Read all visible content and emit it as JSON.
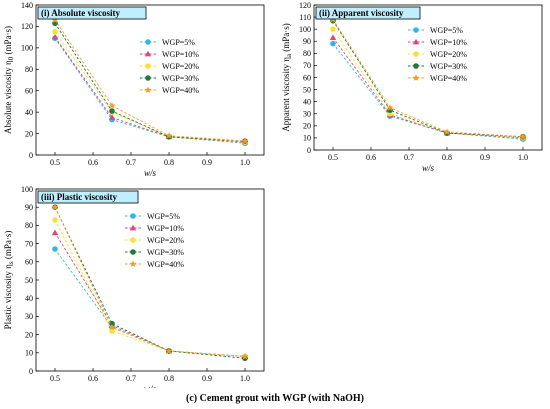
{
  "caption": "(c) Cement grout with WGP (with NaOH)",
  "colors": {
    "WGP=5%": "#33b5e5",
    "WGP=10%": "#e0457b",
    "WGP=20%": "#f2e33a",
    "WGP=30%": "#1e7a34",
    "WGP=40%": "#f59a2e",
    "tag_bg": "#bfefff"
  },
  "chart_data": [
    {
      "type": "line",
      "panel_tag": "(i) Absolute viscosity",
      "xlabel": "w/s",
      "ylabel": "Absolute viscosity η",
      "ylabel_sub": "0",
      "ylabel_unit": " (mPa·s)",
      "xlim": [
        0.45,
        1.05
      ],
      "ylim": [
        0,
        140
      ],
      "xticks": [
        "0.5",
        "0.6",
        "0.7",
        "0.8",
        "0.9",
        "1.0"
      ],
      "yticks": [
        "0",
        "20",
        "40",
        "60",
        "80",
        "100",
        "120",
        "140"
      ],
      "x": [
        0.5,
        0.65,
        0.8,
        1.0
      ],
      "series": [
        {
          "name": "WGP=5%",
          "marker": "circle",
          "values": [
            109,
            33,
            17,
            11
          ]
        },
        {
          "name": "WGP=10%",
          "marker": "triangle",
          "values": [
            110,
            35,
            17,
            12
          ]
        },
        {
          "name": "WGP=20%",
          "marker": "circle",
          "values": [
            115,
            40,
            17,
            12
          ]
        },
        {
          "name": "WGP=30%",
          "marker": "circle",
          "values": [
            123,
            41,
            17,
            13
          ]
        },
        {
          "name": "WGP=40%",
          "marker": "star",
          "values": [
            126,
            46,
            18,
            13
          ]
        }
      ]
    },
    {
      "type": "line",
      "panel_tag": "(ii) Apparent viscosity",
      "xlabel": "w/s",
      "ylabel": "Apparent viscosity η",
      "ylabel_sub": "a",
      "ylabel_unit": " (mPa·s)",
      "xlim": [
        0.45,
        1.05
      ],
      "ylim": [
        0,
        120
      ],
      "xticks": [
        "0.5",
        "0.6",
        "0.7",
        "0.8",
        "0.9",
        "1.0"
      ],
      "yticks": [
        "0",
        "10",
        "20",
        "30",
        "40",
        "50",
        "60",
        "70",
        "80",
        "90",
        "100",
        "110",
        "120"
      ],
      "x": [
        0.5,
        0.65,
        0.8,
        1.0
      ],
      "series": [
        {
          "name": "WGP=5%",
          "marker": "circle",
          "values": [
            88,
            28,
            14,
            9
          ]
        },
        {
          "name": "WGP=10%",
          "marker": "triangle",
          "values": [
            93,
            29,
            14,
            10
          ]
        },
        {
          "name": "WGP=20%",
          "marker": "circle",
          "values": [
            100,
            30,
            14,
            10
          ]
        },
        {
          "name": "WGP=30%",
          "marker": "circle",
          "values": [
            107,
            33,
            14,
            11
          ]
        },
        {
          "name": "WGP=40%",
          "marker": "star",
          "values": [
            108,
            35,
            15,
            11
          ]
        }
      ]
    },
    {
      "type": "line",
      "panel_tag": "(iii) Plastic viscosity",
      "xlabel": "w/s",
      "ylabel": "Plastic viscosity η",
      "ylabel_sub": "s",
      "ylabel_unit": " (mPa·s)",
      "xlim": [
        0.45,
        1.05
      ],
      "ylim": [
        0,
        100
      ],
      "xticks": [
        "0.5",
        "0.6",
        "0.7",
        "0.8",
        "0.9",
        "1.0"
      ],
      "yticks": [
        "0",
        "10",
        "20",
        "30",
        "40",
        "50",
        "60",
        "70",
        "80",
        "90",
        "100"
      ],
      "x": [
        0.5,
        0.65,
        0.8,
        1.0
      ],
      "series": [
        {
          "name": "WGP=5%",
          "marker": "circle",
          "values": [
            67,
            24,
            11,
            8
          ]
        },
        {
          "name": "WGP=10%",
          "marker": "triangle",
          "values": [
            76,
            25,
            11,
            8
          ]
        },
        {
          "name": "WGP=20%",
          "marker": "circle",
          "values": [
            83,
            22,
            11,
            8
          ]
        },
        {
          "name": "WGP=30%",
          "marker": "circle",
          "values": [
            90,
            26,
            11,
            7
          ]
        },
        {
          "name": "WGP=40%",
          "marker": "star",
          "values": [
            90,
            24,
            11,
            8
          ]
        }
      ]
    }
  ]
}
